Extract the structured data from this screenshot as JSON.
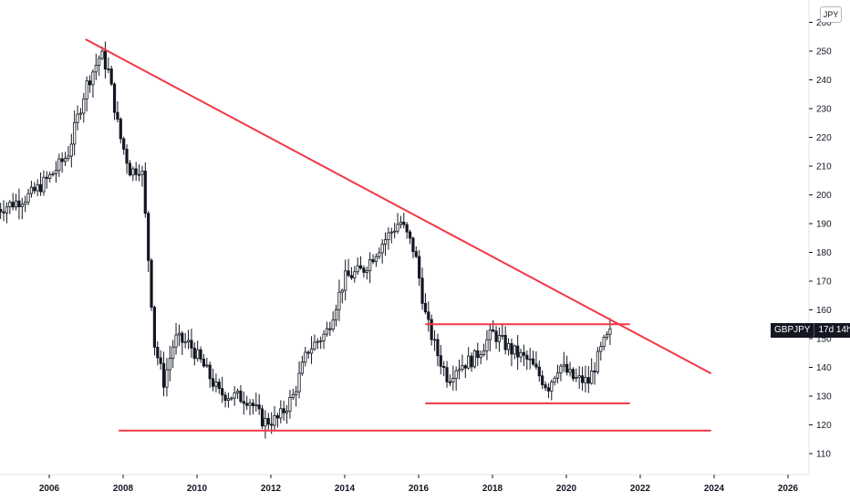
{
  "currency_label": "JPY",
  "symbol_badge": {
    "symbol": "GBPJPY",
    "countdown": "17d 14h"
  },
  "colors": {
    "background": "#ffffff",
    "candles": "#131722",
    "trendlines": "#f23645",
    "axis_text": "#131722"
  },
  "chart_data": {
    "type": "candlestick",
    "symbol": "GBPJPY",
    "title": "",
    "xlabel": "",
    "ylabel": "",
    "ylim": [
      103,
      260
    ],
    "xlim": [
      2004.6,
      2027.6
    ],
    "yticks": [
      110,
      120,
      130,
      140,
      150,
      160,
      170,
      180,
      190,
      200,
      210,
      220,
      230,
      240,
      250,
      260
    ],
    "xticks": [
      "2006",
      "2008",
      "2010",
      "2012",
      "2014",
      "2016",
      "2018",
      "2020",
      "2022",
      "2024",
      "2026"
    ],
    "grid": false,
    "legend": "none",
    "series_close": [
      [
        2004.6,
        195
      ],
      [
        2005.0,
        197
      ],
      [
        2005.5,
        200
      ],
      [
        2006.0,
        206
      ],
      [
        2006.5,
        214
      ],
      [
        2007.0,
        238
      ],
      [
        2007.4,
        249
      ],
      [
        2007.6,
        243
      ],
      [
        2007.9,
        221
      ],
      [
        2008.2,
        208
      ],
      [
        2008.5,
        210
      ],
      [
        2008.7,
        175
      ],
      [
        2008.85,
        148
      ],
      [
        2009.1,
        135
      ],
      [
        2009.4,
        150
      ],
      [
        2009.8,
        148
      ],
      [
        2010.2,
        140
      ],
      [
        2010.6,
        131
      ],
      [
        2011.0,
        130
      ],
      [
        2011.4,
        129
      ],
      [
        2011.8,
        121
      ],
      [
        2012.2,
        122
      ],
      [
        2012.6,
        130
      ],
      [
        2013.0,
        146
      ],
      [
        2013.5,
        152
      ],
      [
        2014.0,
        171
      ],
      [
        2014.5,
        174
      ],
      [
        2015.0,
        183
      ],
      [
        2015.5,
        191
      ],
      [
        2015.9,
        180
      ],
      [
        2016.2,
        157
      ],
      [
        2016.5,
        145
      ],
      [
        2016.8,
        136
      ],
      [
        2017.0,
        140
      ],
      [
        2017.5,
        143
      ],
      [
        2018.0,
        152
      ],
      [
        2018.5,
        146
      ],
      [
        2019.0,
        142
      ],
      [
        2019.5,
        133
      ],
      [
        2019.8,
        141
      ],
      [
        2020.2,
        136
      ],
      [
        2020.6,
        135
      ],
      [
        2021.0,
        148
      ],
      [
        2021.25,
        153
      ]
    ],
    "trendlines": [
      {
        "from": [
          2007.0,
          254
        ],
        "to": [
          2023.9,
          138
        ]
      },
      {
        "from": [
          2007.9,
          118
        ],
        "to": [
          2023.9,
          118
        ]
      },
      {
        "from": [
          2016.2,
          127.5
        ],
        "to": [
          2021.7,
          127.5
        ]
      },
      {
        "from": [
          2016.2,
          155
        ],
        "to": [
          2021.7,
          155
        ]
      }
    ],
    "last_price": 153
  }
}
